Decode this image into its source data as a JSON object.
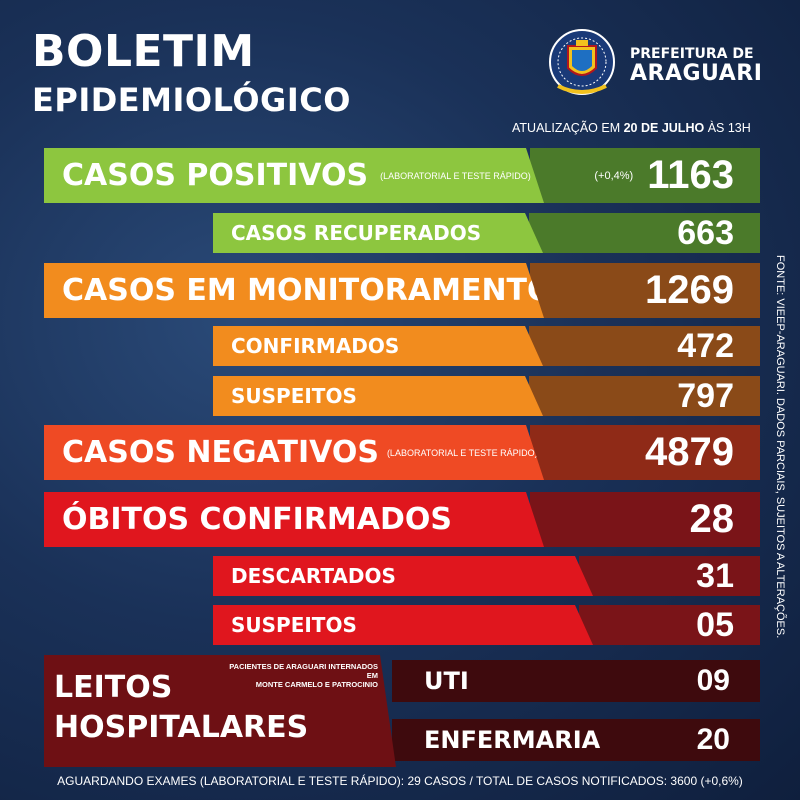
{
  "header": {
    "title_line1": "BOLETIM",
    "title_line2": "EPIDEMIOLÓGICO",
    "logo_line1": "PREFEITURA DE",
    "logo_line2": "ARAGUARI",
    "crest_icon": "city-crest-icon",
    "update_prefix": "ATUALIZAÇÃO EM",
    "update_date": "20 DE JULHO",
    "update_suffix": "ÀS 13H"
  },
  "rows": {
    "positivos": {
      "label": "CASOS POSITIVOS",
      "note": "(LABORATORIAL E TESTE RÁPIDO)",
      "change": "(+0,4%)",
      "value": "1163"
    },
    "recuperados": {
      "label": "CASOS RECUPERADOS",
      "value": "663"
    },
    "monitoramento": {
      "label": "CASOS EM MONITORAMENTO",
      "value": "1269"
    },
    "confirmados": {
      "label": "CONFIRMADOS",
      "value": "472"
    },
    "suspeitos_m": {
      "label": "SUSPEITOS",
      "value": "797"
    },
    "negativos": {
      "label": "CASOS NEGATIVOS",
      "note": "(LABORATORIAL E TESTE RÁPIDO)",
      "value": "4879"
    },
    "obitos": {
      "label": "ÓBITOS CONFIRMADOS",
      "value": "28"
    },
    "descartados": {
      "label": "DESCARTADOS",
      "value": "31"
    },
    "suspeitos_o": {
      "label": "SUSPEITOS",
      "value": "05"
    }
  },
  "leitos": {
    "title_line1": "LEITOS",
    "title_line2": "HOSPITALARES",
    "note_line1": "PACIENTES DE ARAGUARI INTERNADOS EM",
    "note_line2": "MONTE CARMELO E PATROCINIO",
    "uti_label": "UTI",
    "uti_value": "09",
    "enf_label": "ENFERMARIA",
    "enf_value": "20"
  },
  "side_note": "FONTE: VIEEP-ARAGUARI. DADOS PARCIAIS, SUJEITOS A ALTERAÇÕES.",
  "footer": "AGUARDANDO EXAMES (LABORATORIAL E TESTE RÁPIDO): 29 CASOS   /   TOTAL DE CASOS NOTIFICADOS: 3600 (+0,6%)"
}
